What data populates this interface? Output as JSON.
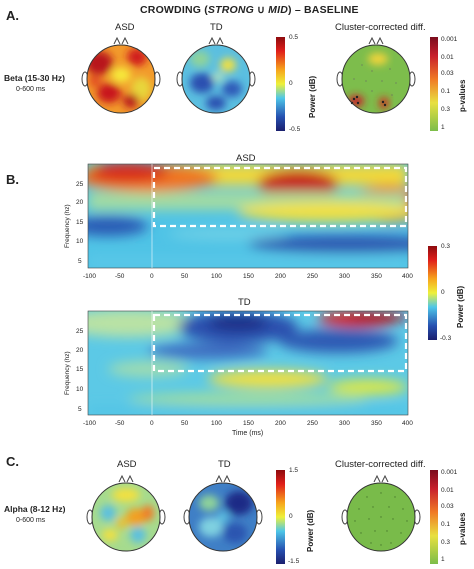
{
  "figure": {
    "title_prefix": "CROWDING (",
    "title_strong": "STRONG",
    "title_union": " ∪ ",
    "title_mid": "MID",
    "title_suffix": ") – BASELINE"
  },
  "panel_a": {
    "letter": "A.",
    "band_label": "Beta (15-30 Hz)",
    "window_label": "0-600 ms",
    "asd_label": "ASD",
    "td_label": "TD",
    "cluster_label": "Cluster-corrected diff.",
    "power_ticks": [
      "0.5",
      "0",
      "-0.5"
    ],
    "power_title": "Power (dB)",
    "p_ticks": [
      "0.001",
      "0.01",
      "0.03",
      "0.1",
      "0.3",
      "1"
    ],
    "p_title": "p-values"
  },
  "panel_b": {
    "letter": "B.",
    "asd_title": "ASD",
    "td_title": "TD",
    "ylabel": "Frequency (hz)",
    "xlabel": "Time (ms)",
    "y_ticks": [
      "25",
      "20",
      "15",
      "10",
      "5"
    ],
    "x_ticks": [
      "-100",
      "-50",
      "0",
      "50",
      "100",
      "150",
      "200",
      "250",
      "300",
      "350",
      "400"
    ],
    "cb_ticks": [
      "0.3",
      "0",
      "-0.3"
    ],
    "cb_title": "Power (dB)"
  },
  "panel_c": {
    "letter": "C.",
    "band_label": "Alpha (8-12 Hz)",
    "window_label": "0-600 ms",
    "asd_label": "ASD",
    "td_label": "TD",
    "cluster_label": "Cluster-corrected diff.",
    "power_ticks": [
      "1.5",
      "0",
      "-1.5"
    ],
    "power_title": "Power (dB)",
    "p_ticks": [
      "0.001",
      "0.01",
      "0.03",
      "0.1",
      "0.3",
      "1"
    ],
    "p_title": "p-values"
  },
  "colors": {
    "jet_red": "#b40f14",
    "jet_orange": "#f06a1e",
    "jet_yellow": "#f2e23a",
    "jet_cyan": "#45c6e6",
    "jet_blue": "#2b4ea6",
    "jet_navy": "#1a237e",
    "p_green": "#79bb4a",
    "p_darkred": "#8c0e1c"
  }
}
